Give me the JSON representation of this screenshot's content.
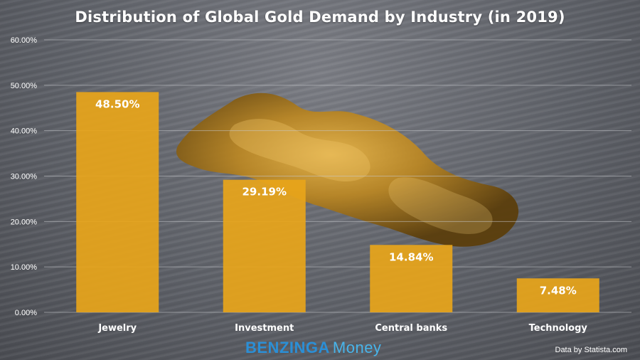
{
  "title": "Distribution of Global Gold Demand by Industry (in 2019)",
  "brand": {
    "part1": "BENZINGA",
    "part2": "Money"
  },
  "credit": "Data by Statista.com",
  "colors": {
    "bar": "#e8a51a",
    "grid": "#c9cbcf",
    "text": "#ffffff"
  },
  "chart_data": {
    "type": "bar",
    "title": "Distribution of Global Gold Demand by Industry (in 2019)",
    "categories": [
      "Jewelry",
      "Investment",
      "Central banks",
      "Technology"
    ],
    "values": [
      48.5,
      29.19,
      14.84,
      7.48
    ],
    "data_labels": [
      "48.50%",
      "29.19%",
      "14.84%",
      "7.48%"
    ],
    "ylim": [
      0,
      60
    ],
    "yticks": [
      0,
      10,
      20,
      30,
      40,
      50,
      60
    ],
    "ytick_labels": [
      "0.00%",
      "10.00%",
      "20.00%",
      "30.00%",
      "40.00%",
      "50.00%",
      "60.00%"
    ],
    "grid": true,
    "xlabel": "",
    "ylabel": ""
  }
}
